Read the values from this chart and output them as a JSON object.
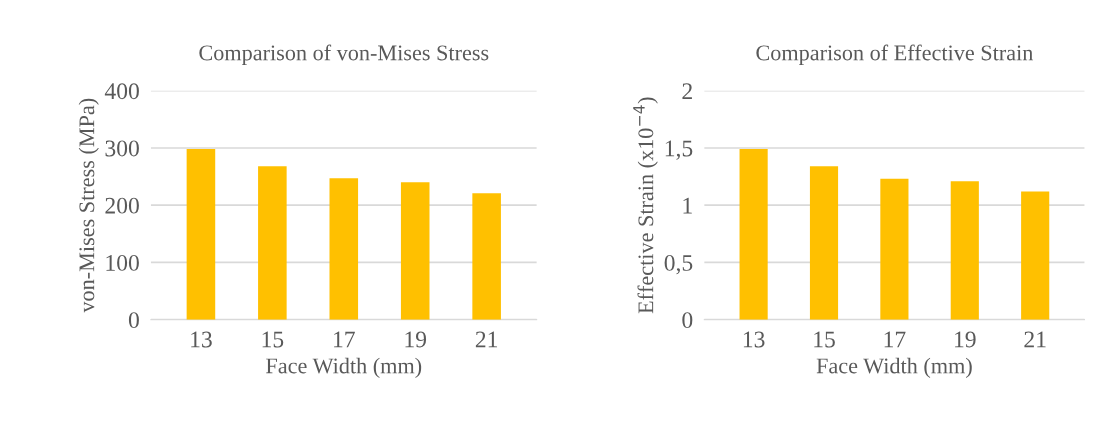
{
  "chart_data": [
    {
      "type": "bar",
      "title": "Comparison of von-Mises Stress",
      "xlabel": "Face Width (mm)",
      "ylabel": "von-Mises Stress (MPa)",
      "categories": [
        "13",
        "15",
        "17",
        "19",
        "21"
      ],
      "values": [
        298,
        268,
        247,
        240,
        221
      ],
      "color": "#ffc000",
      "ylim": [
        0,
        400
      ],
      "yticks": [
        0,
        100,
        200,
        300,
        400
      ],
      "grid": "y",
      "legend": false
    },
    {
      "type": "bar",
      "title": "Comparison of Effective Strain",
      "xlabel": "Face Width (mm)",
      "ylabel": "Effective Strain (x10$^{−4}$)",
      "categories": [
        "13",
        "15",
        "17",
        "19",
        "21"
      ],
      "values": [
        1.49,
        1.34,
        1.23,
        1.21,
        1.12
      ],
      "color": "#ffc000",
      "ylim": [
        0,
        2
      ],
      "yticks": [
        0,
        {
          "value": 0.5,
          "label": "0,5"
        },
        1,
        {
          "value": 1.5,
          "label": "1,5"
        },
        2
      ],
      "grid": "y",
      "legend": false
    }
  ]
}
